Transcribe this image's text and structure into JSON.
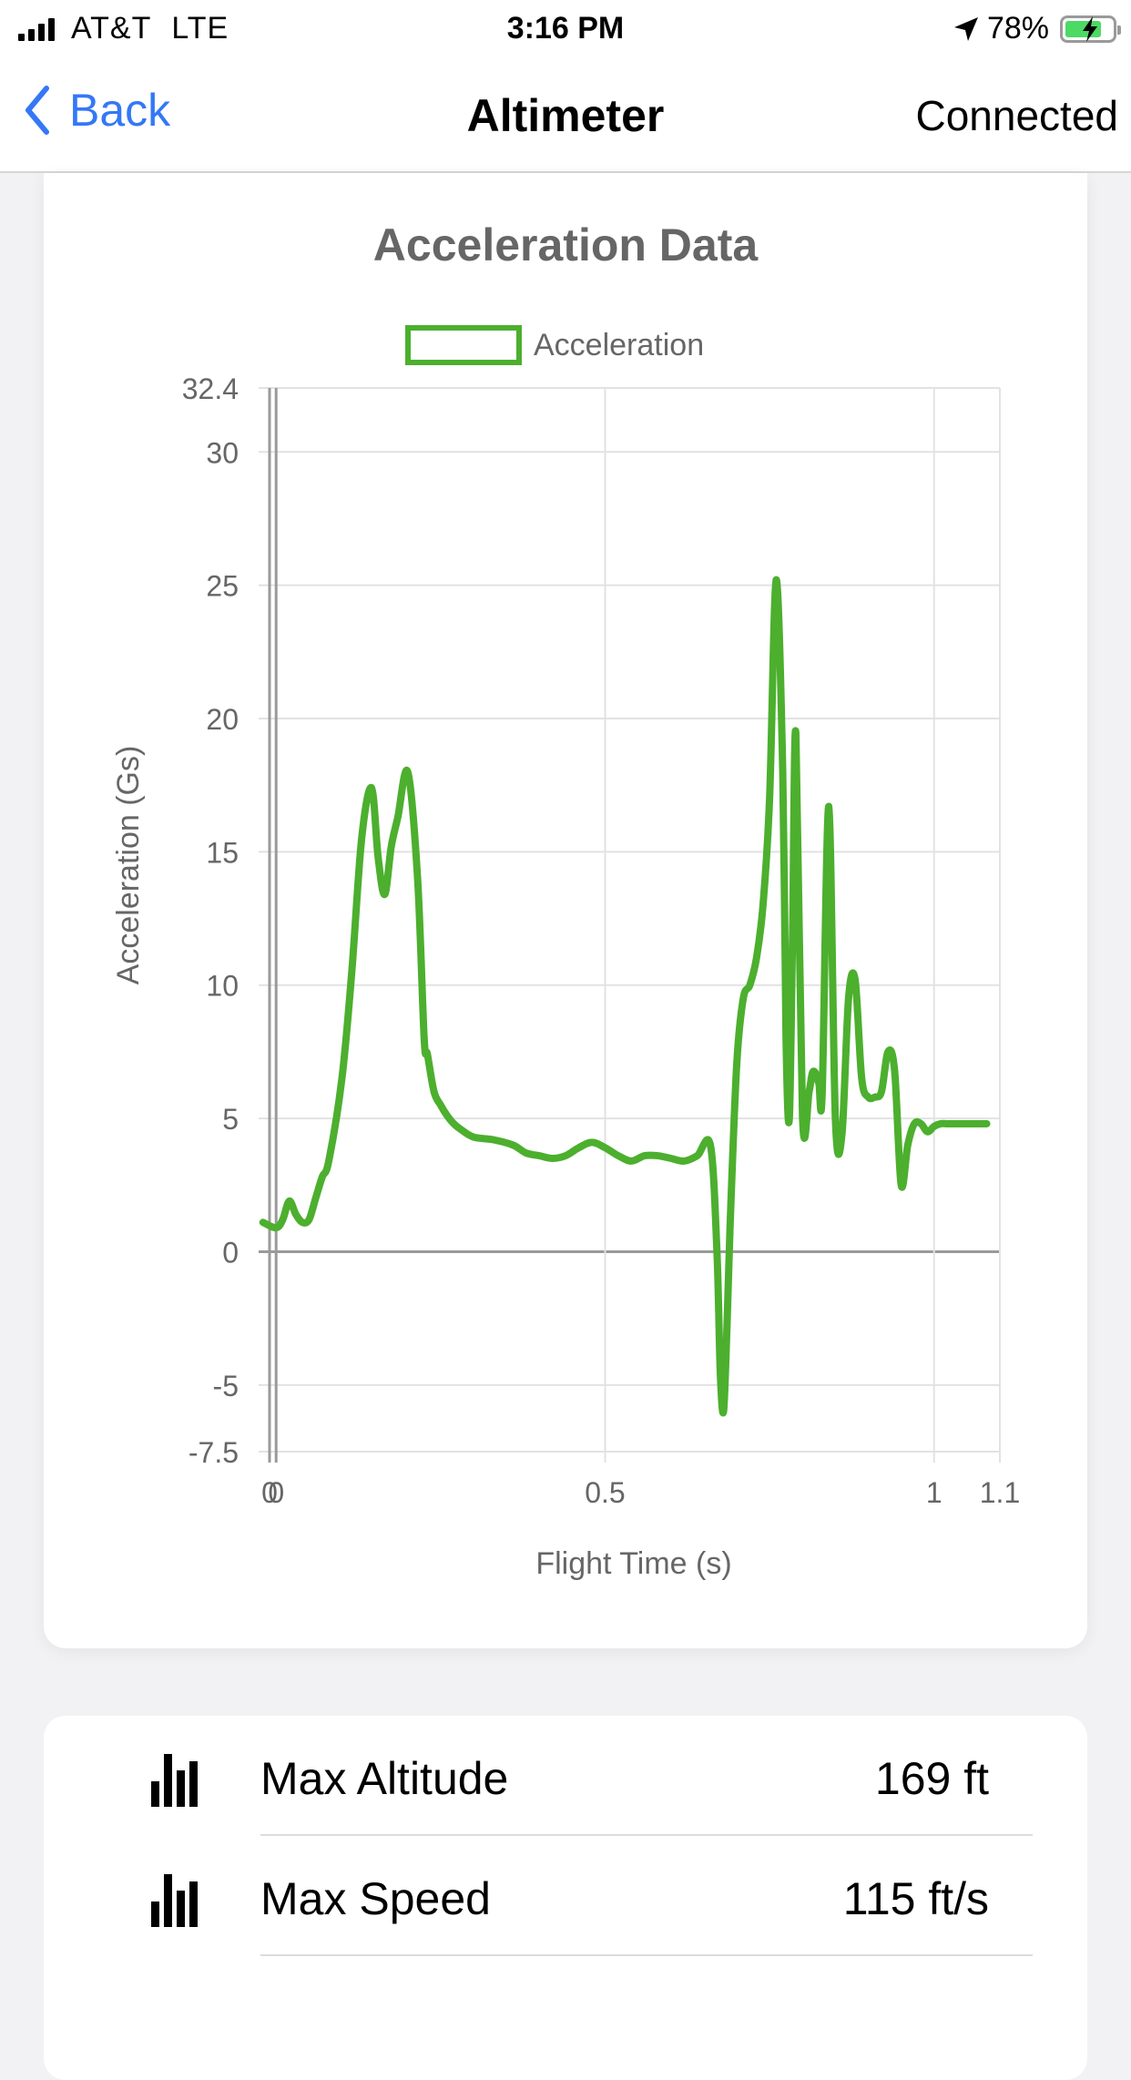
{
  "status_bar": {
    "carrier": "AT&T",
    "network": "LTE",
    "time": "3:16 PM",
    "battery": "78%",
    "battery_level": 0.78
  },
  "nav": {
    "back_label": "Back",
    "title": "Altimeter",
    "status": "Connected"
  },
  "chart_data": {
    "type": "line",
    "title": "Acceleration Data",
    "xlabel": "Flight Time (s)",
    "ylabel": "Acceleration (Gs)",
    "xlim": [
      -0.01,
      1.1
    ],
    "ylim": [
      -7.5,
      32.4
    ],
    "y_ticks": [
      -7.5,
      -5,
      0,
      5,
      10,
      15,
      20,
      25,
      30,
      32.4
    ],
    "y_tick_labels": [
      "-7.5",
      "-5",
      "0",
      "5",
      "10",
      "15",
      "20",
      "25",
      "30",
      "32.4"
    ],
    "x_ticks": [
      -0.01,
      0,
      0.5,
      1,
      1.1
    ],
    "x_tick_labels": [
      "0",
      "0",
      "0.5",
      "1",
      "1.1"
    ],
    "grid": true,
    "legend_position": "top",
    "series": [
      {
        "name": "Acceleration",
        "color": "#4caf2e",
        "x": [
          -0.02,
          0.0,
          0.01,
          0.02,
          0.03,
          0.04,
          0.05,
          0.06,
          0.07,
          0.08,
          0.1,
          0.115,
          0.13,
          0.145,
          0.155,
          0.165,
          0.175,
          0.185,
          0.2,
          0.215,
          0.225,
          0.23,
          0.24,
          0.25,
          0.26,
          0.27,
          0.28,
          0.3,
          0.33,
          0.36,
          0.38,
          0.4,
          0.42,
          0.44,
          0.46,
          0.48,
          0.5,
          0.52,
          0.54,
          0.56,
          0.58,
          0.6,
          0.62,
          0.64,
          0.66,
          0.67,
          0.675,
          0.68,
          0.685,
          0.69,
          0.7,
          0.71,
          0.72,
          0.73,
          0.74,
          0.75,
          0.76,
          0.77,
          0.775,
          0.78,
          0.785,
          0.79,
          0.8,
          0.81,
          0.815,
          0.82,
          0.825,
          0.83,
          0.84,
          0.85,
          0.86,
          0.87,
          0.88,
          0.89,
          0.9,
          0.91,
          0.92,
          0.93,
          0.94,
          0.95,
          0.96,
          0.97,
          0.98,
          0.99,
          1.0,
          1.01,
          1.02,
          1.03,
          1.04,
          1.05,
          1.06,
          1.07,
          1.08
        ],
        "y": [
          1.1,
          0.9,
          1.2,
          1.9,
          1.4,
          1.1,
          1.2,
          2.0,
          2.8,
          3.4,
          6.5,
          10.5,
          15.5,
          17.4,
          14.8,
          13.4,
          15.2,
          16.3,
          18.0,
          14.0,
          8.0,
          7.4,
          6.0,
          5.5,
          5.1,
          4.8,
          4.6,
          4.3,
          4.2,
          4.0,
          3.7,
          3.6,
          3.5,
          3.6,
          3.9,
          4.1,
          3.9,
          3.6,
          3.4,
          3.6,
          3.6,
          3.5,
          3.4,
          3.6,
          4.0,
          0.0,
          -4.5,
          -6.0,
          -3.0,
          1.0,
          7.0,
          9.5,
          10.0,
          11.0,
          13.0,
          17.0,
          25.2,
          18.0,
          8.0,
          5.0,
          12.0,
          19.4,
          5.1,
          6.0,
          6.7,
          6.7,
          6.3,
          6.0,
          16.7,
          5.0,
          4.4,
          9.5,
          10.2,
          6.5,
          5.8,
          5.8,
          6.0,
          7.5,
          6.8,
          2.5,
          4.0,
          4.8,
          4.8,
          4.5,
          4.7,
          4.8,
          4.8,
          4.8,
          4.8,
          4.8,
          4.8,
          4.8,
          4.8
        ]
      }
    ]
  },
  "stats": [
    {
      "label": "Max Altitude",
      "value": "169 ft",
      "icon": "bar-chart-icon"
    },
    {
      "label": "Max Speed",
      "value": "115 ft/s",
      "icon": "bar-chart-icon"
    }
  ]
}
